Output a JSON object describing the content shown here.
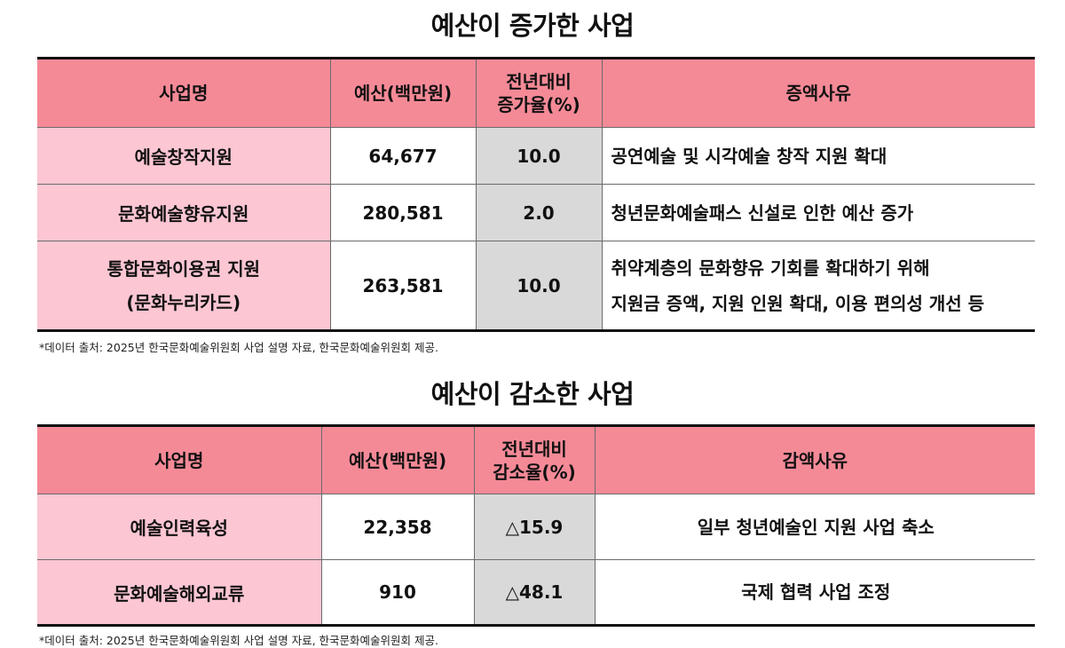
{
  "increase": {
    "title": "예산이 증가한 사업",
    "headers": {
      "name": "사업명",
      "budget": "예산(백만원)",
      "rate_line1": "전년대비",
      "rate_line2": "증가율(%)",
      "reason": "증액사유"
    },
    "rows": [
      {
        "name": "예술창작지원",
        "budget": "64,677",
        "rate": "10.0",
        "reason": "공연예술 및 시각예술 창작 지원 확대"
      },
      {
        "name": "문화예술향유지원",
        "budget": "280,581",
        "rate": "2.0",
        "reason": "청년문화예술패스 신설로 인한 예산 증가"
      },
      {
        "name_line1": "통합문화이용권 지원",
        "name_line2": "(문화누리카드)",
        "budget": "263,581",
        "rate": "10.0",
        "reason_line1": "취약계층의 문화향유 기회를 확대하기 위해",
        "reason_line2": "지원금 증액, 지원 인원 확대, 이용 편의성 개선 등"
      }
    ],
    "note": "*데이터 출처: 2025년 한국문화예술위원회 사업 설명 자료, 한국문화예술위원회 제공."
  },
  "decrease": {
    "title": "예산이 감소한 사업",
    "headers": {
      "name": "사업명",
      "budget": "예산(백만원)",
      "rate_line1": "전년대비",
      "rate_line2": "감소율(%)",
      "reason": "감액사유"
    },
    "rows": [
      {
        "name": "예술인력육성",
        "budget": "22,358",
        "rate": "△15.9",
        "reason": "일부 청년예술인 지원 사업 축소"
      },
      {
        "name": "문화예술해외교류",
        "budget": "910",
        "rate": "△48.1",
        "reason": "국제 협력 사업 조정"
      }
    ],
    "note": "*데이터 출처: 2025년 한국문화예술위원회 사업 설명 자료, 한국문화예술위원회 제공."
  }
}
